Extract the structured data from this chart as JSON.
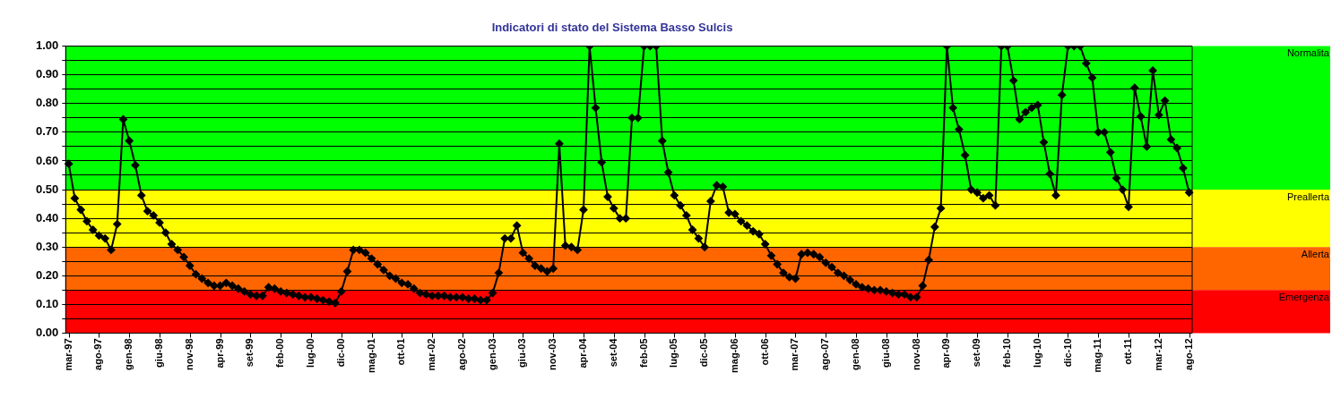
{
  "chart_data": {
    "type": "line",
    "title": "Indicatori di stato del Sistema Basso Sulcis",
    "categories": [
      "mar-97",
      null,
      null,
      null,
      null,
      "ago-97",
      null,
      null,
      null,
      null,
      "gen-98",
      null,
      null,
      null,
      null,
      "giu-98",
      null,
      null,
      null,
      null,
      "nov-98",
      null,
      null,
      null,
      null,
      "apr-99",
      null,
      null,
      null,
      null,
      "set-99",
      null,
      null,
      null,
      null,
      "feb-00",
      null,
      null,
      null,
      null,
      "lug-00",
      null,
      null,
      null,
      null,
      "dic-00",
      null,
      null,
      null,
      null,
      "mag-01",
      null,
      null,
      null,
      null,
      "ott-01",
      null,
      null,
      null,
      null,
      "mar-02",
      null,
      null,
      null,
      null,
      "ago-02",
      null,
      null,
      null,
      null,
      "gen-03",
      null,
      null,
      null,
      null,
      "giu-03",
      null,
      null,
      null,
      null,
      "nov-03",
      null,
      null,
      null,
      null,
      "apr-04",
      null,
      null,
      null,
      null,
      "set-04",
      null,
      null,
      null,
      null,
      "feb-05",
      null,
      null,
      null,
      null,
      "lug-05",
      null,
      null,
      null,
      null,
      "dic-05",
      null,
      null,
      null,
      null,
      "mag-06",
      null,
      null,
      null,
      null,
      "ott-06",
      null,
      null,
      null,
      null,
      "mar-07",
      null,
      null,
      null,
      null,
      "ago-07",
      null,
      null,
      null,
      null,
      "gen-08",
      null,
      null,
      null,
      null,
      "giu-08",
      null,
      null,
      null,
      null,
      "nov-08",
      null,
      null,
      null,
      null,
      "apr-09",
      null,
      null,
      null,
      null,
      "set-09",
      null,
      null,
      null,
      null,
      "feb-10",
      null,
      null,
      null,
      null,
      "lug-10",
      null,
      null,
      null,
      null,
      "dic-10",
      null,
      null,
      null,
      null,
      "mag-11",
      null,
      null,
      null,
      null,
      "ott-11",
      null,
      null,
      null,
      null,
      "mar-12",
      null,
      null,
      null,
      null,
      "ago-12"
    ],
    "series": [
      {
        "color": "#000000",
        "values": [
          0.59,
          0.47,
          0.43,
          0.39,
          0.36,
          0.34,
          0.33,
          0.29,
          0.38,
          0.745,
          0.67,
          0.585,
          0.48,
          0.425,
          0.41,
          0.385,
          0.35,
          0.31,
          0.29,
          0.265,
          0.235,
          0.205,
          0.19,
          0.175,
          0.165,
          0.165,
          0.175,
          0.165,
          0.155,
          0.145,
          0.135,
          0.13,
          0.13,
          0.16,
          0.155,
          0.145,
          0.14,
          0.135,
          0.13,
          0.125,
          0.125,
          0.12,
          0.115,
          0.11,
          0.105,
          0.145,
          0.215,
          0.29,
          0.29,
          0.28,
          0.26,
          0.24,
          0.22,
          0.2,
          0.19,
          0.175,
          0.17,
          0.155,
          0.14,
          0.135,
          0.13,
          0.13,
          0.13,
          0.125,
          0.125,
          0.125,
          0.12,
          0.12,
          0.115,
          0.115,
          0.14,
          0.21,
          0.33,
          0.33,
          0.375,
          0.28,
          0.26,
          0.235,
          0.225,
          0.215,
          0.225,
          0.66,
          0.305,
          0.3,
          0.29,
          0.43,
          1.0,
          0.785,
          0.595,
          0.475,
          0.435,
          0.4,
          0.4,
          0.75,
          0.75,
          1.0,
          1.0,
          1.0,
          0.67,
          0.56,
          0.48,
          0.445,
          0.41,
          0.36,
          0.33,
          0.3,
          0.46,
          0.515,
          0.51,
          0.42,
          0.415,
          0.39,
          0.375,
          0.355,
          0.345,
          0.31,
          0.27,
          0.24,
          0.21,
          0.195,
          0.19,
          0.275,
          0.28,
          0.275,
          0.265,
          0.245,
          0.23,
          0.21,
          0.2,
          0.185,
          0.17,
          0.16,
          0.155,
          0.15,
          0.15,
          0.145,
          0.14,
          0.135,
          0.135,
          0.125,
          0.125,
          0.165,
          0.255,
          0.37,
          0.435,
          1.0,
          0.785,
          0.71,
          0.62,
          0.5,
          0.49,
          0.47,
          0.48,
          0.445,
          1.0,
          1.0,
          0.88,
          0.745,
          0.77,
          0.785,
          0.795,
          0.665,
          0.555,
          0.48,
          0.83,
          1.0,
          1.0,
          1.0,
          0.94,
          0.89,
          0.7,
          0.7,
          0.63,
          0.54,
          0.5,
          0.44,
          0.855,
          0.755,
          0.65,
          0.915,
          0.76,
          0.81,
          0.675,
          0.645,
          0.575,
          0.49
        ]
      }
    ],
    "ylim": [
      0,
      1
    ],
    "yticks": [
      {
        "value": 0,
        "label": "0.00"
      },
      {
        "value": 0.05,
        "label": null
      },
      {
        "value": 0.1,
        "label": "0.10"
      },
      {
        "value": 0.15,
        "label": null
      },
      {
        "value": 0.2,
        "label": "0.20"
      },
      {
        "value": 0.25,
        "label": null
      },
      {
        "value": 0.3,
        "label": "0.30"
      },
      {
        "value": 0.35,
        "label": null
      },
      {
        "value": 0.4,
        "label": "0.40"
      },
      {
        "value": 0.45,
        "label": null
      },
      {
        "value": 0.5,
        "label": "0.50"
      },
      {
        "value": 0.55,
        "label": null
      },
      {
        "value": 0.6,
        "label": "0.60"
      },
      {
        "value": 0.65,
        "label": null
      },
      {
        "value": 0.7,
        "label": "0.70"
      },
      {
        "value": 0.75,
        "label": null
      },
      {
        "value": 0.8,
        "label": "0.80"
      },
      {
        "value": 0.85,
        "label": null
      },
      {
        "value": 0.9,
        "label": "0.90"
      },
      {
        "value": 0.95,
        "label": null
      },
      {
        "value": 1,
        "label": "1.00"
      }
    ],
    "grid": "y",
    "marker": "diamond",
    "bands": [
      {
        "axis": "y",
        "from": 0.5,
        "to": 1,
        "label": "Normalita",
        "color": "#00ff00"
      },
      {
        "axis": "y",
        "from": 0.3,
        "to": 0.5,
        "label": "Preallerta",
        "color": "#ffff00"
      },
      {
        "axis": "y",
        "from": 0.15,
        "to": 0.3,
        "label": "Allerta",
        "color": "#ff6600"
      },
      {
        "axis": "y",
        "from": 0,
        "to": 0.15,
        "label": "Emergenza",
        "color": "#ff0000"
      }
    ]
  }
}
